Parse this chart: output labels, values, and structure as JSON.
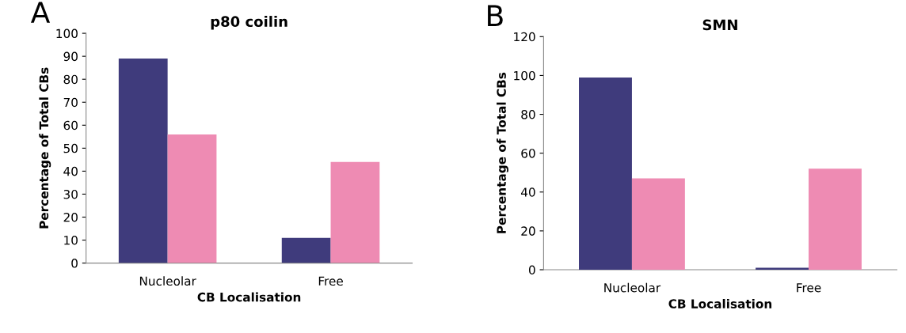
{
  "chart_data": [
    {
      "type": "bar",
      "title": "p80 coilin",
      "xlabel": "CB Localisation",
      "ylabel": "Percentage of Total CBs",
      "annotations": [
        "A"
      ],
      "categories": [
        "Nucleolar",
        "Free"
      ],
      "series": [
        {
          "color": "#3f3b7c",
          "values": [
            89,
            11
          ]
        },
        {
          "color": "#ee8bb3",
          "values": [
            56,
            44
          ]
        }
      ],
      "ylim": [
        0,
        100
      ],
      "yticks": [
        0,
        10,
        20,
        30,
        40,
        50,
        60,
        70,
        80,
        90,
        100
      ],
      "grid": false,
      "legend": false
    },
    {
      "type": "bar",
      "title": "SMN",
      "xlabel": "CB Localisation",
      "ylabel": "Percentage of Total CBs",
      "annotations": [
        "B"
      ],
      "categories": [
        "Nucleolar",
        "Free"
      ],
      "series": [
        {
          "color": "#3f3b7c",
          "values": [
            99,
            1
          ]
        },
        {
          "color": "#ee8bb3",
          "values": [
            47,
            52
          ]
        }
      ],
      "ylim": [
        0,
        120
      ],
      "yticks": [
        0,
        20,
        40,
        60,
        80,
        100,
        120
      ],
      "grid": false,
      "legend": false
    }
  ]
}
